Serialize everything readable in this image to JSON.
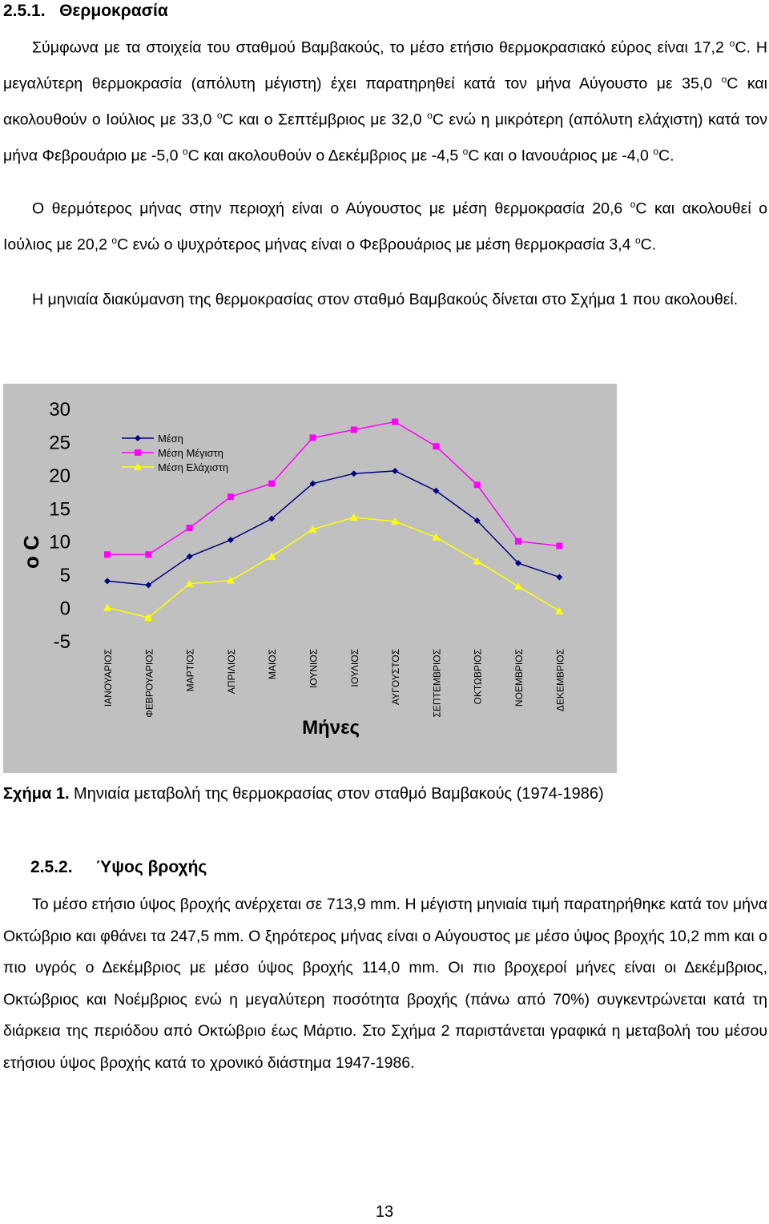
{
  "section1": {
    "number": "2.5.1.",
    "title": "Θερμοκρασία",
    "p1_a": "Σύμφωνα με τα στοιχεία του σταθμού Βαμβακούς, το μέσο ετήσιο θερμοκρασιακό εύρος είναι 17,2 ",
    "p1_b": "C. Η μεγαλύτερη θερμοκρασία (απόλυτη μέγιστη) έχει παρατηρηθεί κατά τον μήνα Αύγουστο με 35,0 ",
    "p1_c": "C και ακολουθούν ο Ιούλιος με 33,0 ",
    "p1_d": "C και ο Σεπτέμβριος με 32,0 ",
    "p1_e": "C ενώ η μικρότερη (απόλυτη ελάχιστη) κατά τον μήνα Φεβρουάριο με -5,0 ",
    "p1_f": "C και ακολουθούν ο Δεκέμβριος με -4,5 ",
    "p1_g": "C και ο Ιανουάριος με -4,0 ",
    "p1_h": "C.",
    "p2_a": "Ο θερμότερος μήνας στην περιοχή είναι ο Αύγουστος με μέση θερμοκρασία 20,6 ",
    "p2_b": "C και ακολουθεί ο Ιούλιος με 20,2 ",
    "p2_c": "C ενώ ο ψυχρότερος μήνας είναι ο Φεβρουάριος με μέση θερμοκρασία 3,4 ",
    "p2_d": "C.",
    "p3": "Η μηνιαία διακύμανση της θερμοκρασίας στον σταθμό Βαμβακούς δίνεται στο Σχήμα 1 που ακολουθεί.",
    "deg": "o"
  },
  "figure": {
    "caption_label": "Σχήμα 1.",
    "caption_text": " Μηνιαία μεταβολή της θερμοκρασίας στον σταθμό Βαμβακούς (1974-1986)"
  },
  "chart_data": {
    "type": "line",
    "ylabel": "o C",
    "xlabel": "Μήνες",
    "ylim": [
      -5,
      30
    ],
    "yticks": [
      "30",
      "25",
      "20",
      "15",
      "10",
      "5",
      "0",
      "-5"
    ],
    "categories": [
      "ΙΑΝΟΥΑΡΙΟΣ",
      "ΦΕΒΡΟΥΑΡΙΟΣ",
      "ΜΑΡΤΙΟΣ",
      "ΑΠΡΙΛΙΟΣ",
      "ΜΑΙΟΣ",
      "ΙΟΥΝΙΟΣ",
      "ΙΟΥΛΙΟΣ",
      "ΑΥΓΟΥΣΤΟΣ",
      "ΣΕΠΤΕΜΒΡΙΟΣ",
      "ΟΚΤΩΒΡΙΟΣ",
      "ΝΟΕΜΒΡΙΟΣ",
      "ΔΕΚΕΜΒΡΙΟΣ"
    ],
    "legend_position": "top-left",
    "grid": false,
    "series": [
      {
        "name": "Μέση",
        "color": "#000080",
        "marker": "diamond",
        "values": [
          4.0,
          3.4,
          7.7,
          10.2,
          13.4,
          18.7,
          20.2,
          20.6,
          17.6,
          13.1,
          6.7,
          4.6
        ]
      },
      {
        "name": "Μέση Μέγιστη",
        "color": "#ff00ff",
        "marker": "square",
        "values": [
          8.0,
          8.0,
          12.0,
          16.7,
          18.7,
          25.6,
          26.8,
          28.0,
          24.3,
          18.5,
          10.0,
          9.3
        ]
      },
      {
        "name": "Μέση Ελάχιστη",
        "color": "#ffff00",
        "marker": "triangle",
        "values": [
          0.0,
          -1.5,
          3.6,
          4.1,
          7.7,
          11.8,
          13.6,
          13.0,
          10.6,
          7.0,
          3.2,
          -0.5
        ]
      }
    ]
  },
  "section2": {
    "number": "2.5.2.",
    "title": "Ύψος βροχής",
    "p1": "Το μέσο ετήσιο ύψος βροχής ανέρχεται σε 713,9 mm. Η μέγιστη μηνιαία τιμή παρατηρήθηκε κατά τον μήνα Οκτώβριο και φθάνει τα 247,5 mm. Ο ξηρότερος μήνας είναι ο Αύγουστος με μέσο ύψος βροχής 10,2 mm και ο πιο υγρός ο Δεκέμβριος με μέσο ύψος βροχής 114,0 mm. Οι πιο βροχεροί μήνες είναι οι Δεκέμβριος, Οκτώβριος και Νοέμβριος ενώ η μεγαλύτερη ποσότητα βροχής (πάνω από 70%) συγκεντρώνεται κατά τη διάρκεια της περιόδου από Οκτώβριο έως Μάρτιο. Στο Σχήμα 2 παριστάνεται γραφικά η μεταβολή του μέσου ετήσιου ύψος βροχής κατά το χρονικό διάστημα 1947-1986."
  },
  "page_number": "13"
}
